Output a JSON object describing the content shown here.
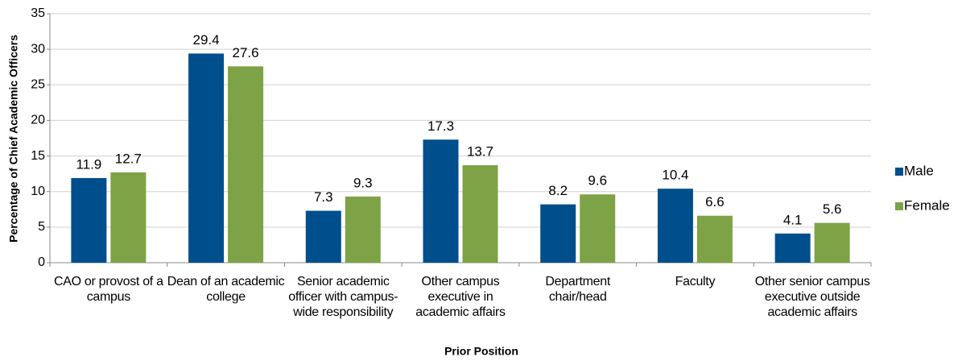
{
  "chart_data": {
    "type": "bar",
    "y_label": "Percentage of Chief Academic Officers",
    "x_label": "Prior Position",
    "categories": [
      "CAO or provost of a campus",
      "Dean of an academic college",
      "Senior academic officer with campus-wide responsibility",
      "Other campus executive in academic affairs",
      "Department chair/head",
      "Faculty",
      "Other senior campus executive outside academic affairs"
    ],
    "series": [
      {
        "name": "Male",
        "color": "#004f8c",
        "values": [
          11.9,
          29.4,
          7.3,
          17.3,
          8.2,
          10.4,
          4.1
        ]
      },
      {
        "name": "Female",
        "color": "#7ea346",
        "values": [
          12.7,
          27.6,
          9.3,
          13.7,
          9.6,
          6.6,
          5.6
        ]
      }
    ],
    "ylim": [
      0,
      35
    ],
    "yticks": [
      0,
      5,
      10,
      15,
      20,
      25,
      30,
      35
    ],
    "grid": true,
    "legend": "right"
  }
}
